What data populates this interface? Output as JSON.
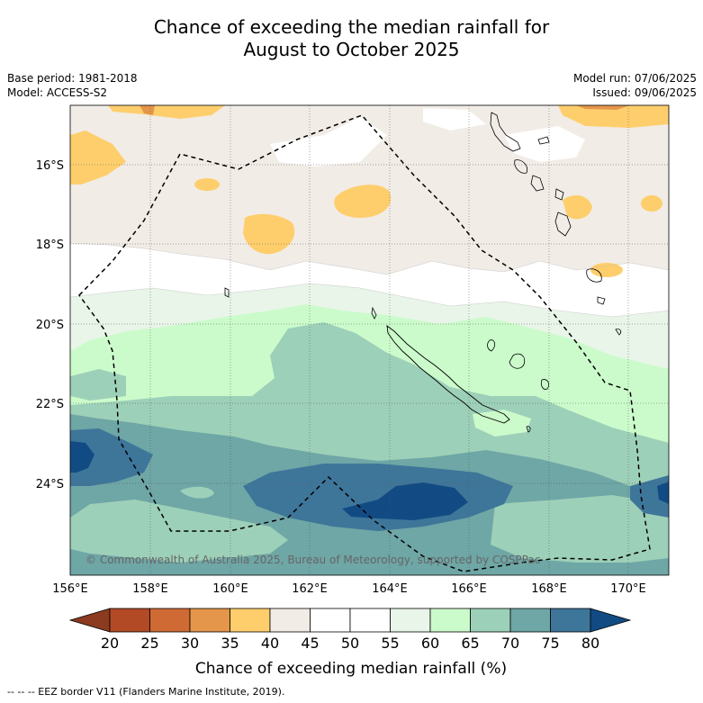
{
  "title_line1": "Chance of exceeding the median rainfall for",
  "title_line2": "August to October 2025",
  "base_period": "Base period: 1981-2018",
  "model": "Model: ACCESS-S2",
  "model_run": "Model run: 07/06/2025",
  "issued": "Issued: 09/06/2025",
  "copyright": "© Commonwealth of Australia 2025, Bureau of Meteorology, supported by COSPPac",
  "lon_labels": [
    "156°E",
    "158°E",
    "160°E",
    "162°E",
    "164°E",
    "166°E",
    "168°E",
    "170°E"
  ],
  "lat_labels": [
    "16°S",
    "18°S",
    "20°S",
    "22°S",
    "24°S"
  ],
  "colorbar": {
    "ticks": [
      "20",
      "25",
      "30",
      "35",
      "40",
      "45",
      "50",
      "55",
      "60",
      "65",
      "70",
      "75",
      "80"
    ],
    "colors": [
      "#8c3a20",
      "#b24a25",
      "#cf6a35",
      "#e4964a",
      "#fece6c",
      "#f1ece6",
      "#ffffff",
      "#ffffff",
      "#e9f5e9",
      "#cbfbcb",
      "#9dd0b8",
      "#6fa6a6",
      "#3e769a",
      "#124b84"
    ],
    "label": "Chance of exceeding median rainfall (%)"
  },
  "legend_note": "-- -- -- EEZ border V11 (Flanders Marine Institute, 2019)."
}
